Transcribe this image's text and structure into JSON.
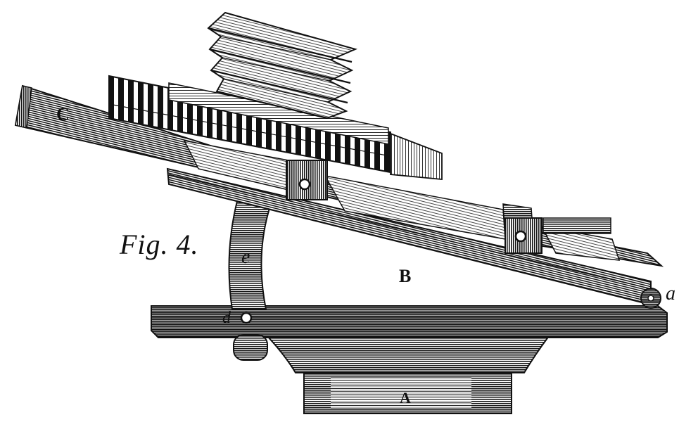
{
  "figure": {
    "caption": "Fig. 4.",
    "labels": {
      "A": "A",
      "B": "B",
      "C": "C",
      "a": "a",
      "d": "d",
      "e": "e"
    }
  },
  "colors": {
    "ink": "#111111",
    "paper": "#ffffff"
  }
}
